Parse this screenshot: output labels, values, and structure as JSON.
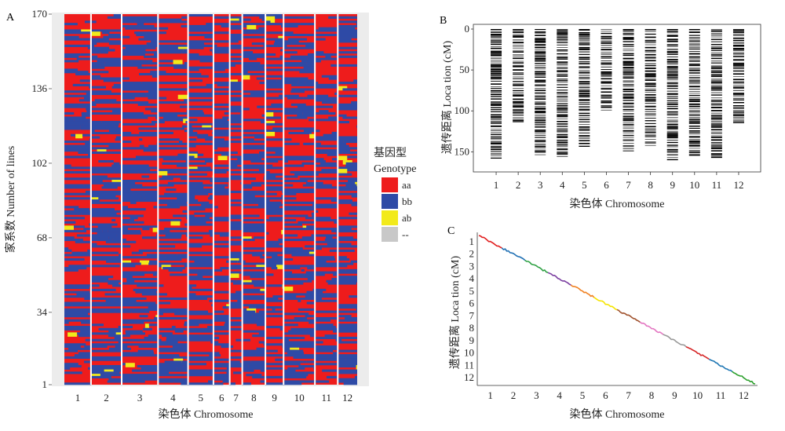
{
  "figure": {
    "panel_labels": [
      "A",
      "B",
      "C"
    ],
    "colors": {
      "aa": "#ee1c1c",
      "bb": "#2e4aa6",
      "ab": "#f2ea1a",
      "missing": "#c8c8c8",
      "panel_bg": "#ececec"
    }
  },
  "chart_data": [
    {
      "panel": "A",
      "type": "heatmap",
      "ylabel": "家系数 Number of lines",
      "xlabel": "染色体 Chromosome",
      "categories": [
        "1",
        "2",
        "3",
        "4",
        "5",
        "6",
        "7",
        "8",
        "9",
        "10",
        "11",
        "12"
      ],
      "yticks": [
        "1",
        "34",
        "68",
        "102",
        "136",
        "170"
      ],
      "ylim": [
        1,
        170
      ],
      "legend": {
        "title_cn": "基因型",
        "title_en": "Genotype",
        "items": [
          {
            "label": "aa",
            "color": "#ee1c1c"
          },
          {
            "label": "bb",
            "color": "#2e4aa6"
          },
          {
            "label": "ab",
            "color": "#f2ea1a"
          },
          {
            "label": "--",
            "color": "#c8c8c8"
          }
        ],
        "position": "right"
      }
    },
    {
      "panel": "B",
      "type": "bar",
      "ylabel": "遗传距离 Loca tion (cM)",
      "xlabel": "染色体 Chromosome",
      "categories": [
        "1",
        "2",
        "3",
        "4",
        "5",
        "6",
        "7",
        "8",
        "9",
        "10",
        "11",
        "12"
      ],
      "values": [
        158,
        113,
        155,
        157,
        143,
        100,
        150,
        142,
        161,
        155,
        156,
        115
      ],
      "yticks": [
        "0",
        "50",
        "100",
        "150"
      ],
      "ylim": [
        0,
        165
      ],
      "reversed_y": true
    },
    {
      "panel": "C",
      "type": "line",
      "ylabel": "遗传距离 Loca tion (cM)",
      "xlabel": "染色体 Chromosome",
      "categories": [
        "1",
        "2",
        "3",
        "4",
        "5",
        "6",
        "7",
        "8",
        "9",
        "10",
        "11",
        "12"
      ],
      "yticks": [
        "1",
        "2",
        "3",
        "4",
        "5",
        "6",
        "7",
        "8",
        "9",
        "10",
        "11",
        "12"
      ],
      "series_colors": [
        "#e11d1d",
        "#2070b4",
        "#2ea043",
        "#7b3fa0",
        "#f08020",
        "#f5e400",
        "#a0522d",
        "#e377c2",
        "#999999",
        "#d62728",
        "#1f77b4",
        "#2ca02c"
      ]
    }
  ]
}
